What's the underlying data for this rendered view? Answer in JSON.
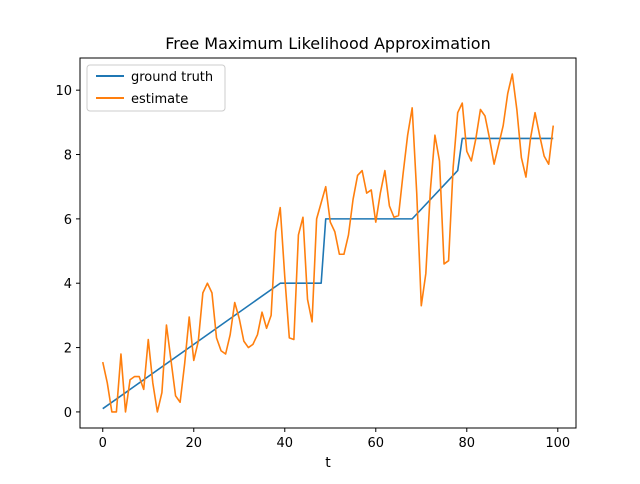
{
  "chart_data": {
    "type": "line",
    "title": "Free Maximum Likelihood Approximation",
    "xlabel": "t",
    "ylabel": "",
    "xlim": [
      -5,
      104
    ],
    "ylim": [
      -0.5,
      11
    ],
    "xticks": [
      0,
      20,
      40,
      60,
      80,
      100
    ],
    "yticks": [
      0,
      2,
      4,
      6,
      8,
      10
    ],
    "legend_position": "top-left",
    "series": [
      {
        "name": "ground truth",
        "color": "#1f77b4",
        "x": [
          0,
          39,
          48,
          49,
          68,
          78,
          79,
          99
        ],
        "y": [
          0.1,
          4.0,
          4.0,
          6.0,
          6.0,
          7.5,
          8.5,
          8.5
        ]
      },
      {
        "name": "estimate",
        "color": "#ff7f0e",
        "x": [
          0,
          1,
          2,
          3,
          4,
          5,
          6,
          7,
          8,
          9,
          10,
          11,
          12,
          13,
          14,
          15,
          16,
          17,
          18,
          19,
          20,
          21,
          22,
          23,
          24,
          25,
          26,
          27,
          28,
          29,
          30,
          31,
          32,
          33,
          34,
          35,
          36,
          37,
          38,
          39,
          40,
          41,
          42,
          43,
          44,
          45,
          46,
          47,
          48,
          49,
          50,
          51,
          52,
          53,
          54,
          55,
          56,
          57,
          58,
          59,
          60,
          61,
          62,
          63,
          64,
          65,
          66,
          67,
          68,
          69,
          70,
          71,
          72,
          73,
          74,
          75,
          76,
          77,
          78,
          79,
          80,
          81,
          82,
          83,
          84,
          85,
          86,
          87,
          88,
          89,
          90,
          91,
          92,
          93,
          94,
          95,
          96,
          97,
          98,
          99
        ],
        "y": [
          1.55,
          0.9,
          0.0,
          0.0,
          1.8,
          0.0,
          1.0,
          1.1,
          1.1,
          0.7,
          2.25,
          0.9,
          0.0,
          0.6,
          2.7,
          1.6,
          0.5,
          0.3,
          1.5,
          2.95,
          1.6,
          2.2,
          3.7,
          4.0,
          3.7,
          2.3,
          1.9,
          1.8,
          2.4,
          3.4,
          2.9,
          2.2,
          2.0,
          2.1,
          2.4,
          3.1,
          2.6,
          3.0,
          5.6,
          6.35,
          4.2,
          2.3,
          2.25,
          5.5,
          6.05,
          3.5,
          2.8,
          6.0,
          6.5,
          7.0,
          5.9,
          5.6,
          4.9,
          4.9,
          5.5,
          6.6,
          7.35,
          7.5,
          6.8,
          6.9,
          5.9,
          6.8,
          7.5,
          6.4,
          6.05,
          6.1,
          7.4,
          8.6,
          9.45,
          6.8,
          3.3,
          4.3,
          6.9,
          8.6,
          7.8,
          4.6,
          4.7,
          7.6,
          9.3,
          9.6,
          8.1,
          7.8,
          8.5,
          9.4,
          9.2,
          8.5,
          7.7,
          8.3,
          8.9,
          9.9,
          10.5,
          9.4,
          7.9,
          7.3,
          8.5,
          9.3,
          8.6,
          7.95,
          7.7,
          8.9
        ]
      }
    ]
  }
}
